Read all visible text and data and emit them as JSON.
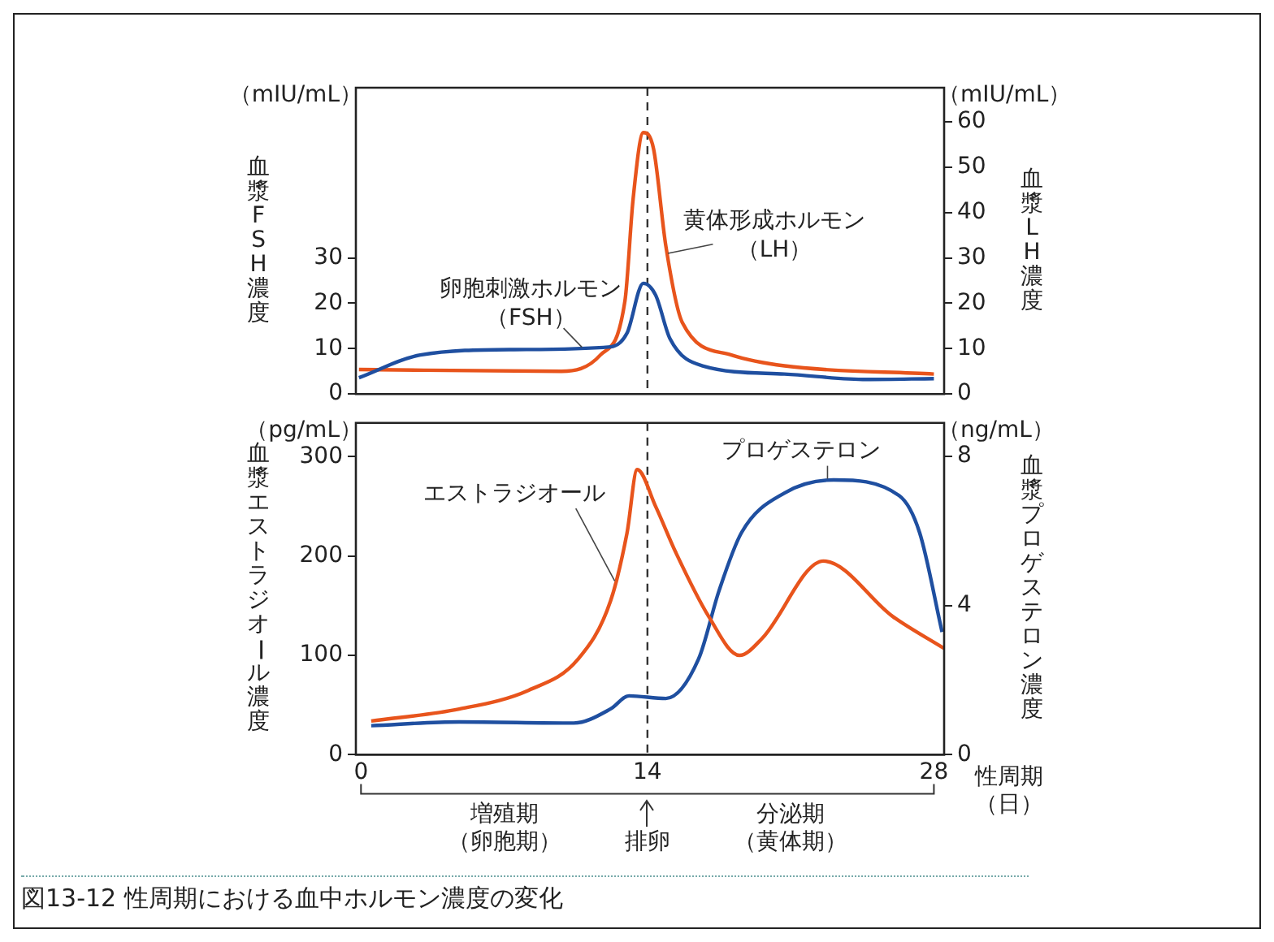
{
  "chart_data": [
    {
      "type": "line",
      "ylabel": "血漿FSH濃度",
      "y2label": "血漿LH濃度",
      "annotations": [
        "（mIU/mL）",
        "（mIU/mL）"
      ],
      "xlim": [
        -0.25,
        28.5
      ],
      "ylim": [
        0,
        67.5
      ],
      "yticks": [
        0,
        10,
        20,
        30
      ],
      "y2lim": [
        0,
        67.5
      ],
      "y2ticks": [
        0,
        10,
        20,
        30,
        40,
        50,
        60
      ],
      "tick_labels": "y",
      "legend": false,
      "ref_lines": [
        {
          "axis": "x",
          "value": 14,
          "color": "#333333",
          "line_style": "dashed"
        }
      ],
      "series": [
        {
          "name": "卵胞刺激ホルモン（FSH）",
          "color": "#1f4fa0",
          "axis": "y",
          "x": [
            -0.1,
            2.9,
            7.5,
            12.2,
            13.0,
            13.8,
            14.4,
            15.1,
            16.7,
            20.7,
            24.7,
            28.0
          ],
          "values": [
            3.6,
            8.6,
            9.8,
            10.4,
            13.4,
            24.4,
            21.8,
            12.2,
            6.2,
            4.4,
            3.2,
            3.4
          ]
        },
        {
          "name": "黄体形成ホルモン（LH）",
          "color": "#e8541c",
          "axis": "y2",
          "x": [
            -0.1,
            9.8,
            11.7,
            12.9,
            13.3,
            13.8,
            14.3,
            14.9,
            15.7,
            18.1,
            20.7,
            28.0
          ],
          "values": [
            5.4,
            5.0,
            8.6,
            20.5,
            43,
            57.6,
            54,
            32.6,
            15.8,
            8.6,
            6.2,
            4.4
          ]
        }
      ]
    },
    {
      "type": "line",
      "title": "図13-12 性周期における血中ホルモン濃度の変化",
      "xlabel": "性周期（日）",
      "ylabel": "血漿エストラジオール濃度",
      "y2label": "血漿プロゲステロン濃度",
      "annotations": [
        "（pg/mL）",
        "（ng/mL）",
        "増殖期（卵胞期）",
        "排卵",
        "分泌期（黄体期）"
      ],
      "xlim": [
        -0.25,
        28.5
      ],
      "xticks": [
        0,
        14,
        28
      ],
      "ylim": [
        0,
        334
      ],
      "yticks": [
        0,
        100,
        200,
        300
      ],
      "y2lim": [
        0,
        8.9
      ],
      "y2ticks": [
        0,
        4,
        8
      ],
      "legend": false,
      "ref_lines": [
        {
          "axis": "x",
          "value": 14,
          "color": "#333333",
          "line_style": "dashed"
        }
      ],
      "series": [
        {
          "name": "エストラジオール",
          "color": "#e8541c",
          "axis": "y",
          "x": [
            0.5,
            4.8,
            8.2,
            10.6,
            12.2,
            13.0,
            13.5,
            14.4,
            15.4,
            17.0,
            18.5,
            19.6,
            22.6,
            26.0,
            28.5
          ],
          "values": [
            34,
            46,
            65,
            96,
            155,
            223,
            287,
            250,
            203,
            139,
            100,
            117,
            195,
            139,
            107
          ]
        },
        {
          "name": "プロゲステロン",
          "color": "#1f4fa0",
          "axis": "y2",
          "x": [
            0.5,
            4.8,
            10.4,
            12.2,
            13.1,
            14.9,
            16.5,
            17.5,
            18.6,
            20.7,
            23.1,
            26.3,
            27.3,
            28.4
          ],
          "values": [
            0.78,
            0.88,
            0.85,
            1.23,
            1.58,
            1.51,
            2.57,
            4.4,
            5.96,
            7.02,
            7.37,
            6.95,
            5.96,
            3.29
          ]
        }
      ]
    }
  ]
}
